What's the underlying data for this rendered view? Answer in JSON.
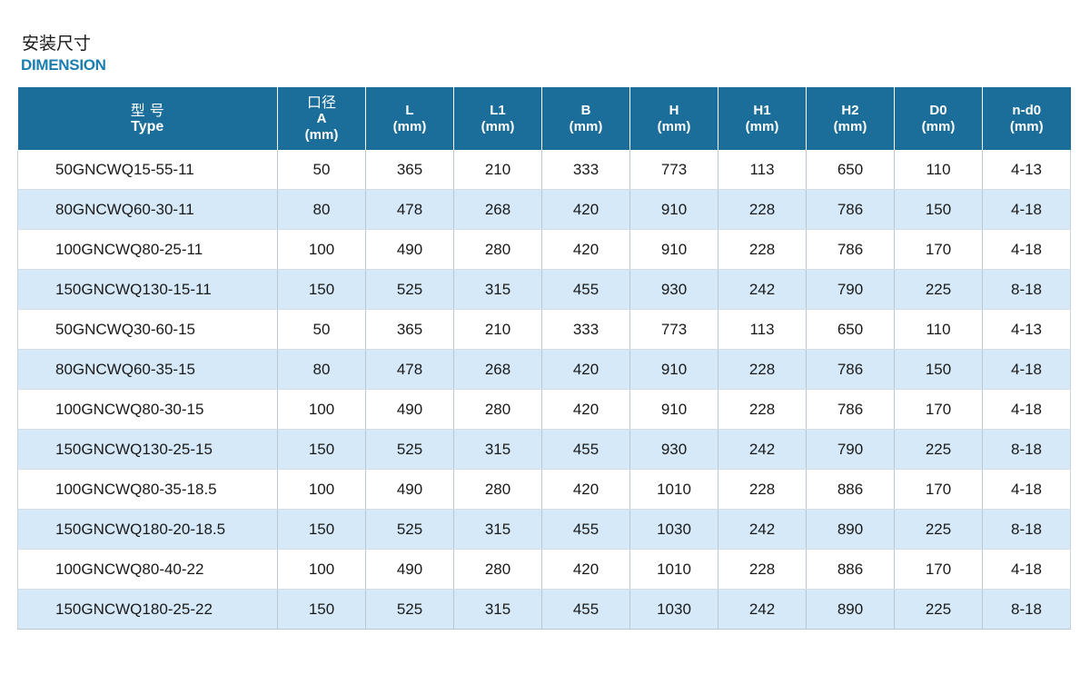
{
  "heading": {
    "cn": "安装尺寸",
    "en": "DIMENSION"
  },
  "table": {
    "headers": [
      {
        "lines": [
          "型 号",
          "Type"
        ]
      },
      {
        "lines": [
          "口径",
          "A",
          "(mm)"
        ]
      },
      {
        "lines": [
          "L",
          "(mm)"
        ]
      },
      {
        "lines": [
          "L1",
          "(mm)"
        ]
      },
      {
        "lines": [
          "B",
          "(mm)"
        ]
      },
      {
        "lines": [
          "H",
          "(mm)"
        ]
      },
      {
        "lines": [
          "H1",
          "(mm)"
        ]
      },
      {
        "lines": [
          "H2",
          "(mm)"
        ]
      },
      {
        "lines": [
          "D0",
          "(mm)"
        ]
      },
      {
        "lines": [
          "n-d0",
          "(mm)"
        ]
      }
    ],
    "rows": [
      [
        "50GNCWQ15-55-11",
        "50",
        "365",
        "210",
        "333",
        "773",
        "113",
        "650",
        "110",
        "4-13"
      ],
      [
        "80GNCWQ60-30-11",
        "80",
        "478",
        "268",
        "420",
        "910",
        "228",
        "786",
        "150",
        "4-18"
      ],
      [
        "100GNCWQ80-25-11",
        "100",
        "490",
        "280",
        "420",
        "910",
        "228",
        "786",
        "170",
        "4-18"
      ],
      [
        "150GNCWQ130-15-11",
        "150",
        "525",
        "315",
        "455",
        "930",
        "242",
        "790",
        "225",
        "8-18"
      ],
      [
        "50GNCWQ30-60-15",
        "50",
        "365",
        "210",
        "333",
        "773",
        "113",
        "650",
        "110",
        "4-13"
      ],
      [
        "80GNCWQ60-35-15",
        "80",
        "478",
        "268",
        "420",
        "910",
        "228",
        "786",
        "150",
        "4-18"
      ],
      [
        "100GNCWQ80-30-15",
        "100",
        "490",
        "280",
        "420",
        "910",
        "228",
        "786",
        "170",
        "4-18"
      ],
      [
        "150GNCWQ130-25-15",
        "150",
        "525",
        "315",
        "455",
        "930",
        "242",
        "790",
        "225",
        "8-18"
      ],
      [
        "100GNCWQ80-35-18.5",
        "100",
        "490",
        "280",
        "420",
        "1010",
        "228",
        "886",
        "170",
        "4-18"
      ],
      [
        "150GNCWQ180-20-18.5",
        "150",
        "525",
        "315",
        "455",
        "1030",
        "242",
        "890",
        "225",
        "8-18"
      ],
      [
        "100GNCWQ80-40-22",
        "100",
        "490",
        "280",
        "420",
        "1010",
        "228",
        "886",
        "170",
        "4-18"
      ],
      [
        "150GNCWQ180-25-22",
        "150",
        "525",
        "315",
        "455",
        "1030",
        "242",
        "890",
        "225",
        "8-18"
      ]
    ]
  },
  "colors": {
    "header_bg": "#1b6e99",
    "heading_en": "#1a7fb0",
    "alt_row_bg": "#d6e9f8"
  }
}
